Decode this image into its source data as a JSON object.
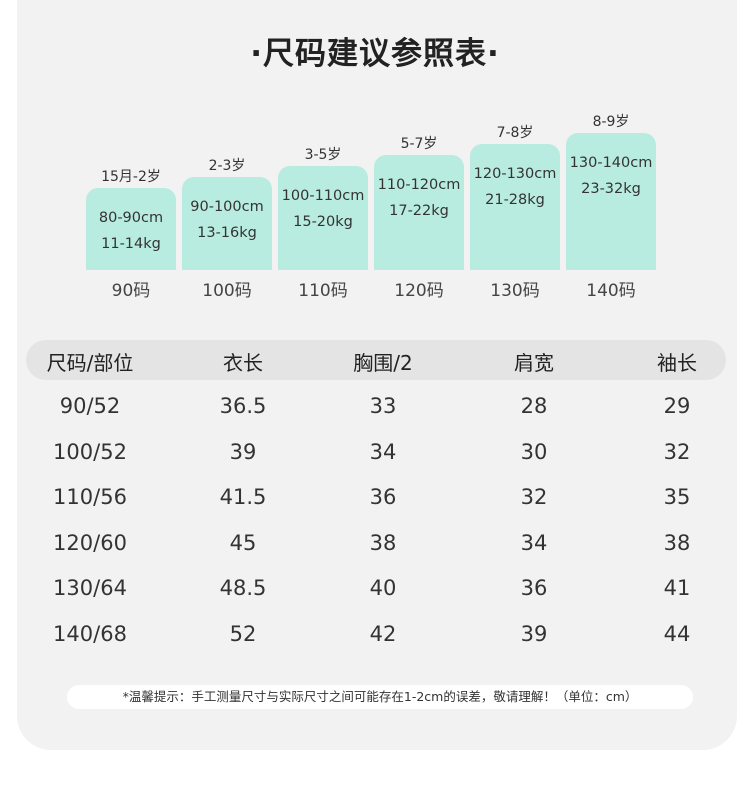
{
  "title": "·尺码建议参照表·",
  "chart_data": {
    "type": "bar",
    "categories": [
      "90码",
      "100码",
      "110码",
      "120码",
      "130码",
      "140码"
    ],
    "ages": [
      "15月-2岁",
      "2-3岁",
      "3-5岁",
      "5-7岁",
      "7-8岁",
      "8-9岁"
    ],
    "heights": [
      "80-90cm",
      "90-100cm",
      "100-110cm",
      "110-120cm",
      "120-130cm",
      "130-140cm"
    ],
    "weights": [
      "11-14kg",
      "13-16kg",
      "15-20kg",
      "17-22kg",
      "21-28kg",
      "23-32kg"
    ],
    "colors": {
      "bar": "#b9ece0"
    }
  },
  "table": {
    "headers": [
      "尺码/部位",
      "衣长",
      "胸围/2",
      "肩宽",
      "袖长"
    ],
    "rows": [
      [
        "90/52",
        "36.5",
        "33",
        "28",
        "29"
      ],
      [
        "100/52",
        "39",
        "34",
        "30",
        "32"
      ],
      [
        "110/56",
        "41.5",
        "36",
        "32",
        "35"
      ],
      [
        "120/60",
        "45",
        "38",
        "34",
        "38"
      ],
      [
        "130/64",
        "48.5",
        "40",
        "36",
        "41"
      ],
      [
        "140/68",
        "52",
        "42",
        "39",
        "44"
      ]
    ]
  },
  "note": "*温馨提示：手工测量尺寸与实际尺寸之间可能存在1-2cm的误差，敬请理解！（单位：cm）"
}
